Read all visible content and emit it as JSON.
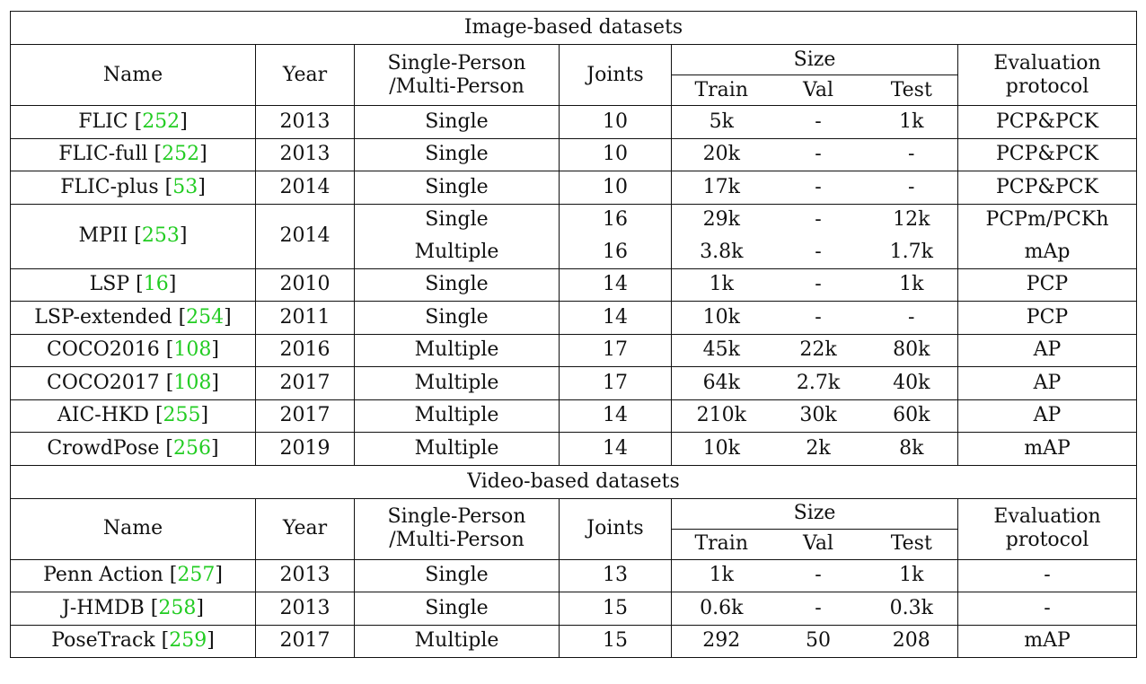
{
  "sections": [
    {
      "title": "Image-based datasets",
      "headers": {
        "name": "Name",
        "year": "Year",
        "person_1": "Single-Person",
        "person_2": "/Multi-Person",
        "joints": "Joints",
        "size": "Size",
        "train": "Train",
        "val": "Val",
        "test": "Test",
        "eval_1": "Evaluation",
        "eval_2": "protocol"
      },
      "rows": [
        {
          "name": "FLIC",
          "cite": "252",
          "year": "2013",
          "sub": [
            {
              "person": "Single",
              "joints": "10",
              "train": "5k",
              "val": "-",
              "test": "1k",
              "protocol": "PCP&PCK"
            }
          ]
        },
        {
          "name": "FLIC-full",
          "cite": "252",
          "year": "2013",
          "sub": [
            {
              "person": "Single",
              "joints": "10",
              "train": "20k",
              "val": "-",
              "test": "-",
              "protocol": "PCP&PCK"
            }
          ]
        },
        {
          "name": "FLIC-plus",
          "cite": "53",
          "year": "2014",
          "sub": [
            {
              "person": "Single",
              "joints": "10",
              "train": "17k",
              "val": "-",
              "test": "-",
              "protocol": "PCP&PCK"
            }
          ]
        },
        {
          "name": "MPII",
          "cite": "253",
          "year": "2014",
          "sub": [
            {
              "person": "Single",
              "joints": "16",
              "train": "29k",
              "val": "-",
              "test": "12k",
              "protocol": "PCPm/PCKh"
            },
            {
              "person": "Multiple",
              "joints": "16",
              "train": "3.8k",
              "val": "-",
              "test": "1.7k",
              "protocol": "mAp"
            }
          ]
        },
        {
          "name": "LSP",
          "cite": "16",
          "year": "2010",
          "sub": [
            {
              "person": "Single",
              "joints": "14",
              "train": "1k",
              "val": "-",
              "test": "1k",
              "protocol": "PCP"
            }
          ]
        },
        {
          "name": "LSP-extended",
          "cite": "254",
          "year": "2011",
          "sub": [
            {
              "person": "Single",
              "joints": "14",
              "train": "10k",
              "val": "-",
              "test": "-",
              "protocol": "PCP"
            }
          ]
        },
        {
          "name": "COCO2016",
          "cite": "108",
          "year": "2016",
          "sub": [
            {
              "person": "Multiple",
              "joints": "17",
              "train": "45k",
              "val": "22k",
              "test": "80k",
              "protocol": "AP"
            }
          ]
        },
        {
          "name": "COCO2017",
          "cite": "108",
          "year": "2017",
          "sub": [
            {
              "person": "Multiple",
              "joints": "17",
              "train": "64k",
              "val": "2.7k",
              "test": "40k",
              "protocol": "AP"
            }
          ]
        },
        {
          "name": "AIC-HKD",
          "cite": "255",
          "year": "2017",
          "sub": [
            {
              "person": "Multiple",
              "joints": "14",
              "train": "210k",
              "val": "30k",
              "test": "60k",
              "protocol": "AP"
            }
          ]
        },
        {
          "name": "CrowdPose",
          "cite": "256",
          "year": "2019",
          "sub": [
            {
              "person": "Multiple",
              "joints": "14",
              "train": "10k",
              "val": "2k",
              "test": "8k",
              "protocol": "mAP"
            }
          ]
        }
      ]
    },
    {
      "title": "Video-based datasets",
      "headers": {
        "name": "Name",
        "year": "Year",
        "person_1": "Single-Person",
        "person_2": "/Multi-Person",
        "joints": "Joints",
        "size": "Size",
        "train": "Train",
        "val": "Val",
        "test": "Test",
        "eval_1": "Evaluation",
        "eval_2": "protocol"
      },
      "rows": [
        {
          "name": "Penn Action",
          "cite": "257",
          "year": "2013",
          "sub": [
            {
              "person": "Single",
              "joints": "13",
              "train": "1k",
              "val": "-",
              "test": "1k",
              "protocol": "-"
            }
          ]
        },
        {
          "name": "J-HMDB",
          "cite": "258",
          "year": "2013",
          "sub": [
            {
              "person": "Single",
              "joints": "15",
              "train": "0.6k",
              "val": "-",
              "test": "0.3k",
              "protocol": "-"
            }
          ]
        },
        {
          "name": "PoseTrack",
          "cite": "259",
          "year": "2017",
          "sub": [
            {
              "person": "Multiple",
              "joints": "15",
              "train": "292",
              "val": "50",
              "test": "208",
              "protocol": "mAP"
            }
          ]
        }
      ]
    }
  ]
}
